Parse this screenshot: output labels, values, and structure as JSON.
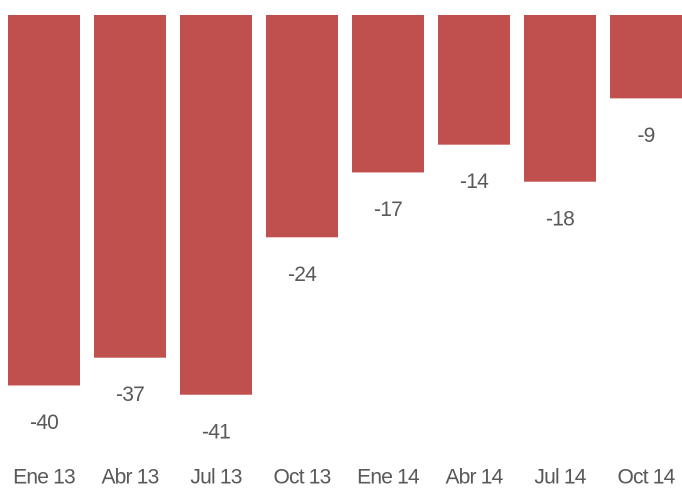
{
  "chart_data": {
    "type": "bar",
    "categories": [
      "Ene 13",
      "Abr 13",
      "Jul 13",
      "Oct 13",
      "Ene 14",
      "Abr 14",
      "Jul 14",
      "Oct 14"
    ],
    "values": [
      -40,
      -37,
      -41,
      -24,
      -17,
      -14,
      -18,
      -9
    ],
    "color": "#c0504d",
    "ylim": [
      -42,
      0
    ]
  }
}
